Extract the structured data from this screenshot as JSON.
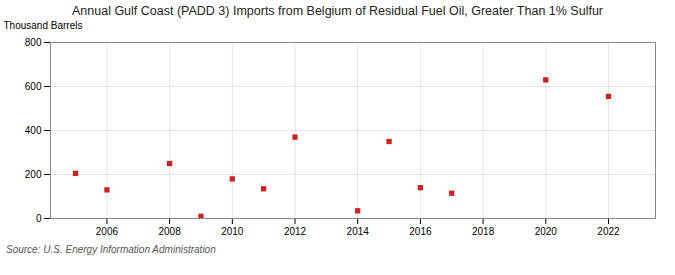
{
  "chart_data": {
    "type": "scatter",
    "title": "Annual Gulf Coast (PADD 3) Imports from Belgium of Residual Fuel Oil, Greater Than 1% Sulfur",
    "ylabel": "Thousand Barrels",
    "caption": "Source: U.S. Energy Information Administration",
    "x": [
      2005,
      2006,
      2008,
      2009,
      2010,
      2011,
      2012,
      2014,
      2015,
      2016,
      2017,
      2020,
      2022
    ],
    "values": [
      205,
      130,
      250,
      10,
      180,
      135,
      370,
      35,
      350,
      140,
      115,
      630,
      555
    ],
    "color": "#cc2222",
    "marker": "square",
    "xlim": [
      2004.2,
      2023.5
    ],
    "ylim": [
      0,
      800
    ],
    "xticks": [
      2006,
      2008,
      2010,
      2012,
      2014,
      2016,
      2018,
      2020,
      2022
    ],
    "yticks": [
      0,
      200,
      400,
      600,
      800
    ],
    "grid": true
  }
}
